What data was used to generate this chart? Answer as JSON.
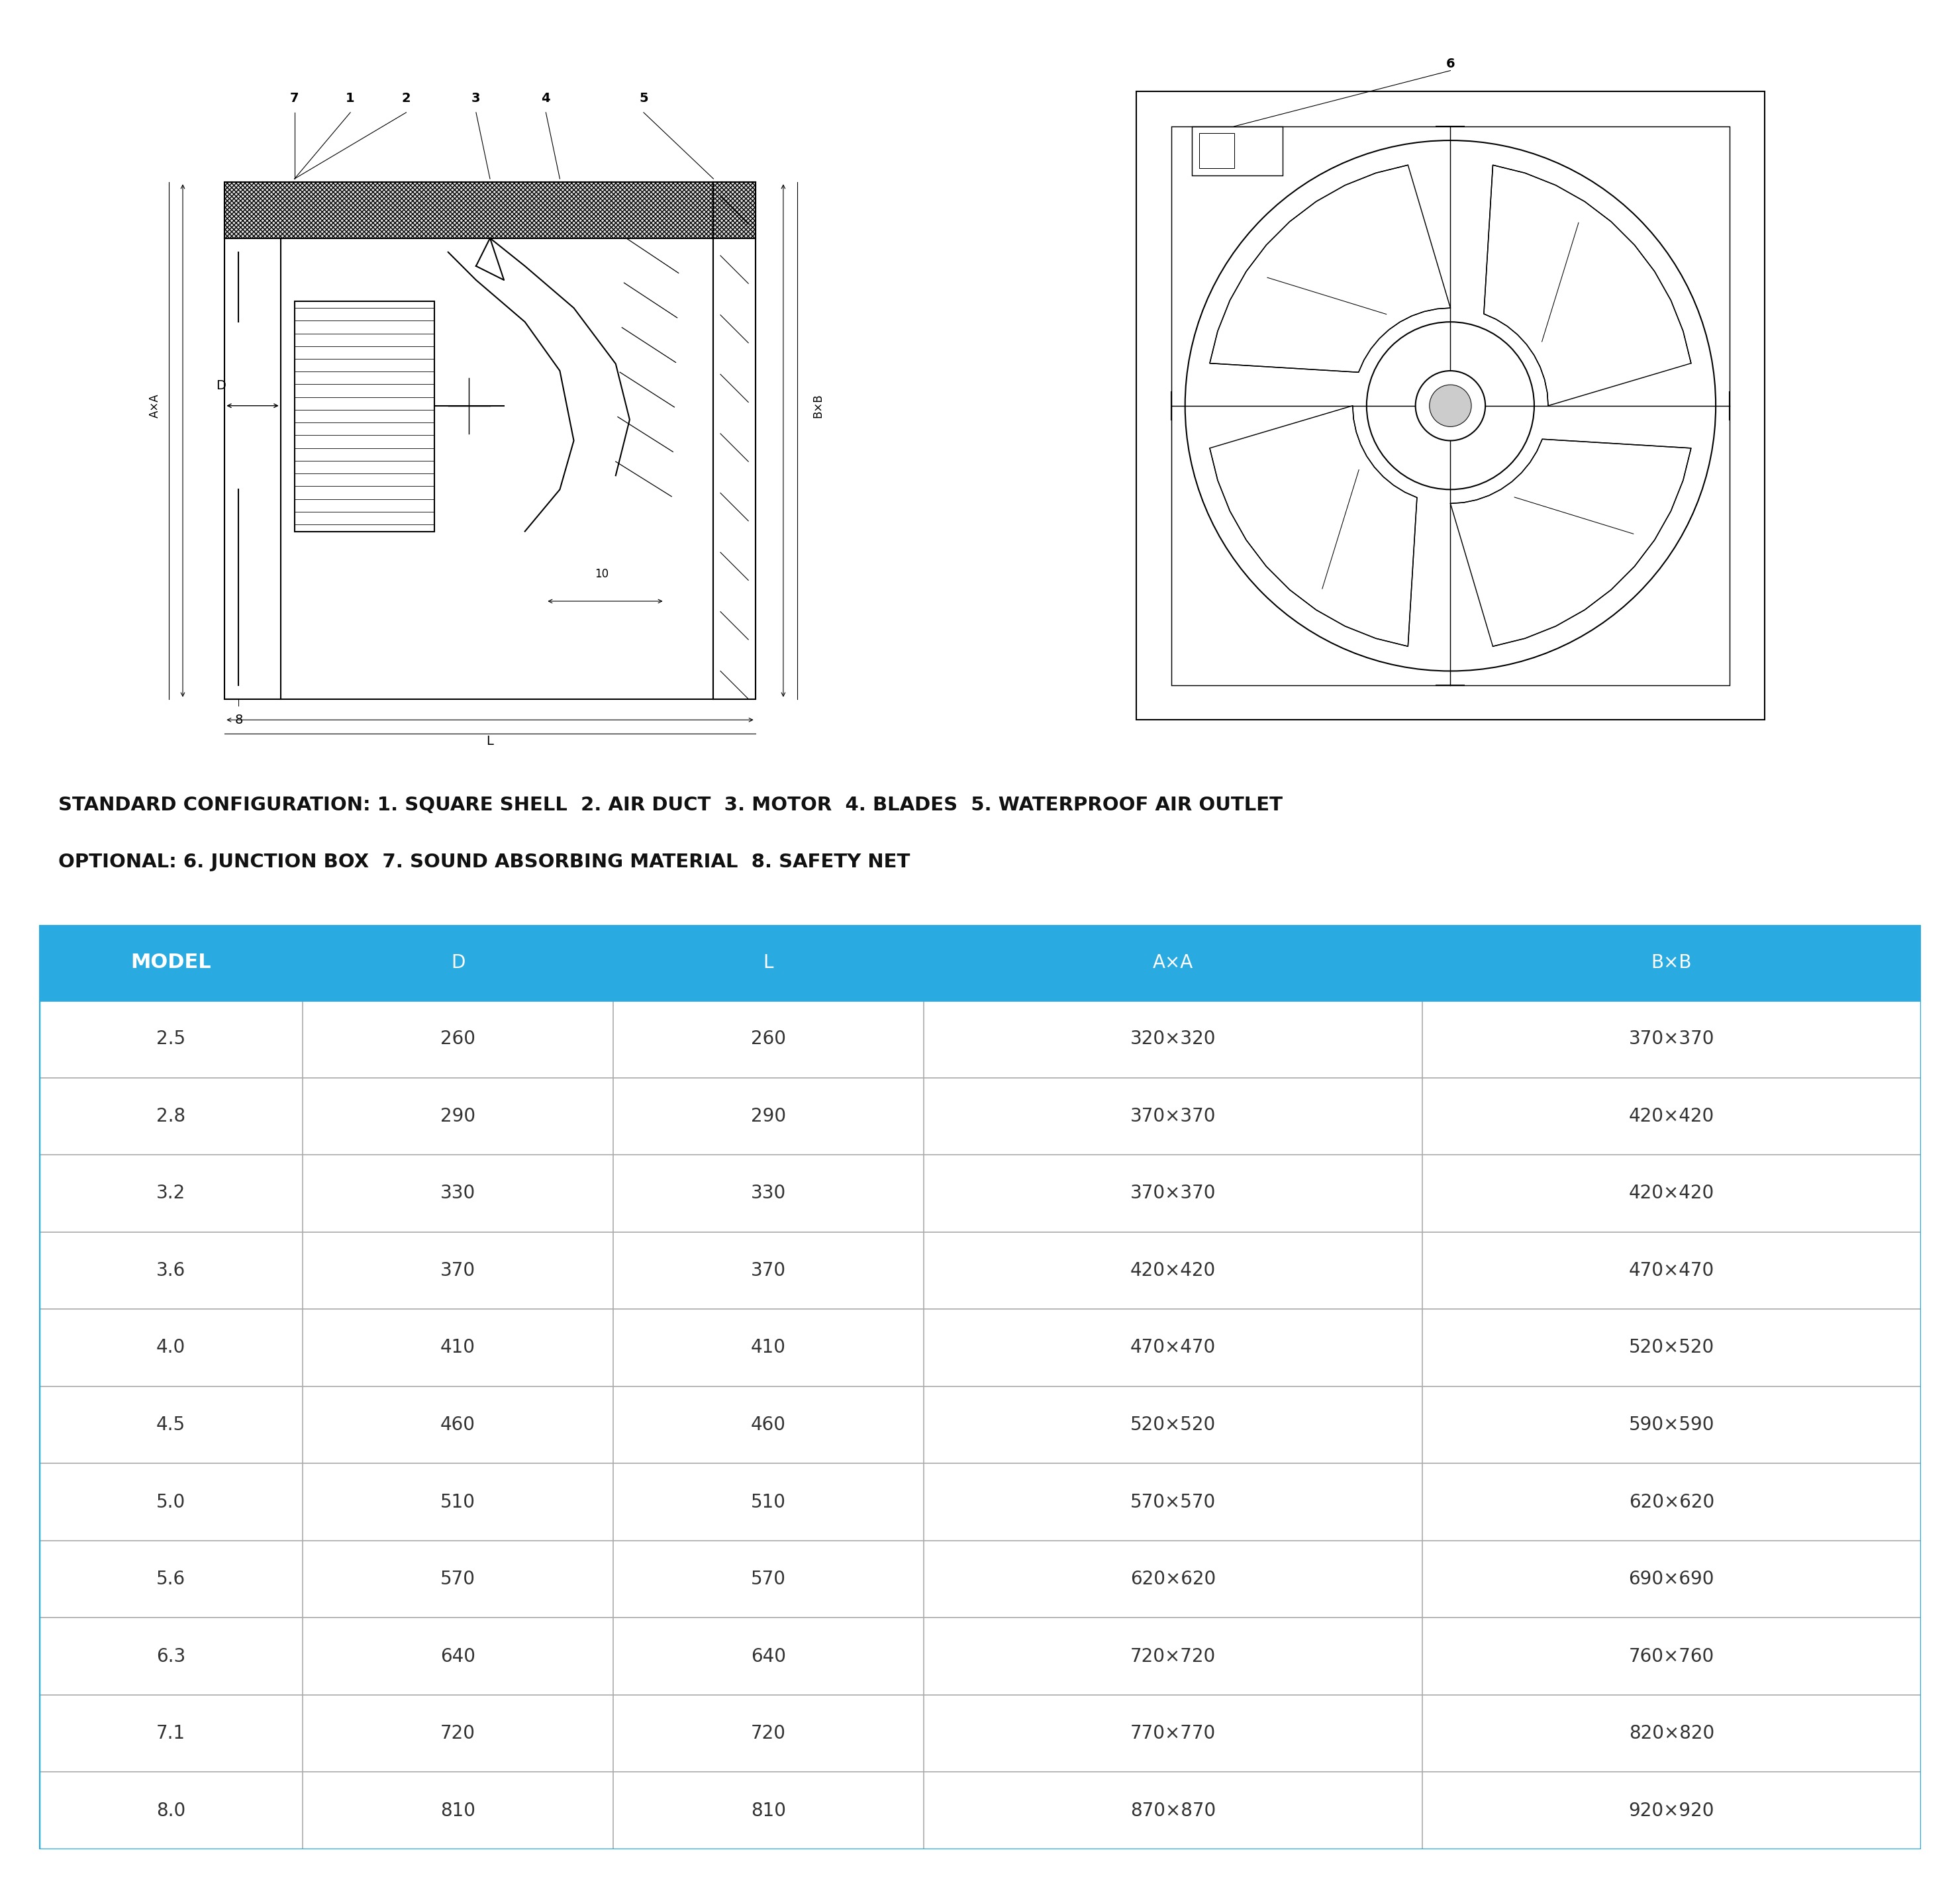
{
  "table_headers": [
    "MODEL",
    "D",
    "L",
    "A×A",
    "B×B"
  ],
  "table_rows": [
    [
      "2.5",
      "260",
      "260",
      "320×320",
      "370×370"
    ],
    [
      "2.8",
      "290",
      "290",
      "370×370",
      "420×420"
    ],
    [
      "3.2",
      "330",
      "330",
      "370×370",
      "420×420"
    ],
    [
      "3.6",
      "370",
      "370",
      "420×420",
      "470×470"
    ],
    [
      "4.0",
      "410",
      "410",
      "470×470",
      "520×520"
    ],
    [
      "4.5",
      "460",
      "460",
      "520×520",
      "590×590"
    ],
    [
      "5.0",
      "510",
      "510",
      "570×570",
      "620×620"
    ],
    [
      "5.6",
      "570",
      "570",
      "620×620",
      "690×690"
    ],
    [
      "6.3",
      "640",
      "640",
      "720×720",
      "760×760"
    ],
    [
      "7.1",
      "720",
      "720",
      "770×770",
      "820×820"
    ],
    [
      "8.0",
      "810",
      "810",
      "870×870",
      "920×920"
    ]
  ],
  "header_bg_color": "#29ABE2",
  "header_text_color": "white",
  "row_text_color": "#333333",
  "table_border_color": "#29ABE2",
  "row_border_color": "#aaaaaa",
  "config_text_line1": "STANDARD CONFIGURATION: 1. SQUARE SHELL  2. AIR DUCT  3. MOTOR  4. BLADES  5. WATERPROOF AIR OUTLET",
  "config_text_line2": "OPTIONAL: 6. JUNCTION BOX  7. SOUND ABSORBING MATERIAL  8. SAFETY NET",
  "background_color": "white"
}
